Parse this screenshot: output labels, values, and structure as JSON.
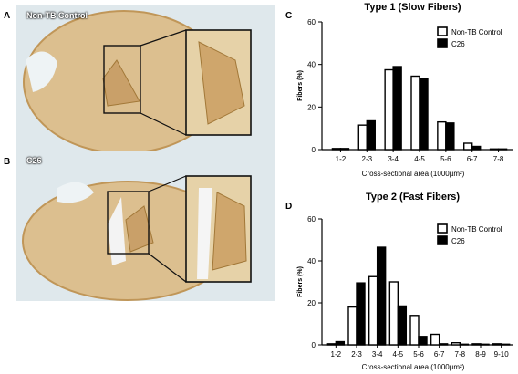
{
  "panels": {
    "A": {
      "letter": "A",
      "label": "Non-TB Control"
    },
    "B": {
      "letter": "B",
      "label": "C26"
    },
    "C": {
      "letter": "C"
    },
    "D": {
      "letter": "D"
    }
  },
  "colors": {
    "control_fill": "#ffffff",
    "c26_fill": "#000000",
    "tissue": "#d9b987",
    "tissue_dark": "#c49a5e",
    "background": "#dfe8ec"
  },
  "chart_data": [
    {
      "type": "bar",
      "title": "Type 1 (Slow Fibers)",
      "xlabel": "Cross-sectional area (1000µm²)",
      "ylabel": "Fibers (%)",
      "categories": [
        "1-2",
        "2-3",
        "3-4",
        "4-5",
        "5-6",
        "6-7",
        "7-8"
      ],
      "series": [
        {
          "name": "Non-TB Control",
          "values": [
            0.5,
            11.5,
            37.5,
            34.5,
            13,
            3,
            0.3
          ]
        },
        {
          "name": "C26",
          "values": [
            0.5,
            13.5,
            39,
            33.5,
            12.5,
            1.5,
            0.3
          ]
        }
      ],
      "ylim": [
        0,
        60
      ],
      "yticks": [
        0,
        20,
        40,
        60
      ],
      "legend": "top-right"
    },
    {
      "type": "bar",
      "title": "Type 2 (Fast Fibers)",
      "xlabel": "Cross-sectional area (1000µm²)",
      "ylabel": "Fibers (%)",
      "categories": [
        "1-2",
        "2-3",
        "3-4",
        "4-5",
        "5-6",
        "6-7",
        "7-8",
        "8-9",
        "9-10"
      ],
      "series": [
        {
          "name": "Non-TB Control",
          "values": [
            0.5,
            18,
            32.5,
            30,
            14,
            5,
            1,
            0.5,
            0.5
          ]
        },
        {
          "name": "C26",
          "values": [
            1.5,
            29.5,
            46.5,
            18.5,
            4,
            0.5,
            0.3,
            0.3,
            0.3
          ]
        }
      ],
      "ylim": [
        0,
        60
      ],
      "yticks": [
        0,
        20,
        40,
        60
      ],
      "legend": "top-right"
    }
  ]
}
